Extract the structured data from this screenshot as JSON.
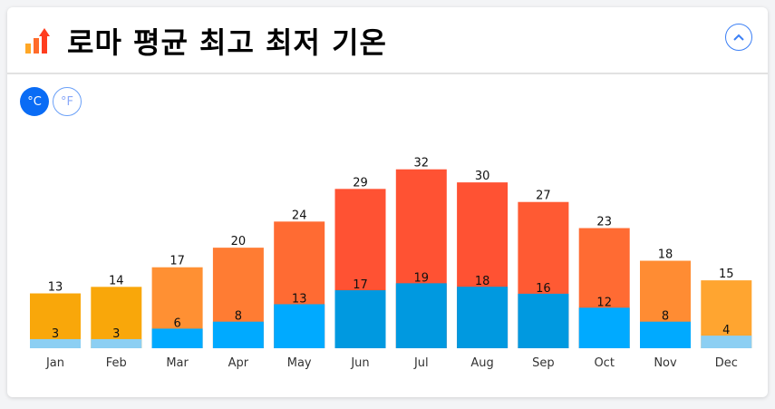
{
  "header": {
    "title": "로마 평균 최고 최저 기온",
    "icon": "bar-chart-up-icon",
    "collapse_icon": "chevron-up-icon"
  },
  "units": {
    "celsius": "°C",
    "fahrenheit": "°F",
    "selected": "celsius"
  },
  "chart_data": {
    "type": "bar",
    "categories": [
      "Jan",
      "Feb",
      "Mar",
      "Apr",
      "May",
      "Jun",
      "Jul",
      "Aug",
      "Sep",
      "Oct",
      "Nov",
      "Dec"
    ],
    "series": [
      {
        "key": "high",
        "values": [
          13,
          14,
          17,
          20,
          24,
          29,
          32,
          30,
          27,
          23,
          18,
          15
        ],
        "colors": [
          "#f9a70a",
          "#f9a70a",
          "#ff9033",
          "#ff7c33",
          "#ff6b33",
          "#ff5233",
          "#ff5233",
          "#ff5233",
          "#ff5a33",
          "#ff6b33",
          "#ff8c33",
          "#ffa530"
        ]
      },
      {
        "key": "low",
        "values": [
          3,
          3,
          6,
          8,
          13,
          17,
          19,
          18,
          16,
          12,
          8,
          4
        ],
        "colors": [
          "#8ccff3",
          "#8ccff3",
          "#00aaff",
          "#00aaff",
          "#00aaff",
          "#0099e0",
          "#0099e0",
          "#0099e0",
          "#0099e0",
          "#00aaff",
          "#00aaff",
          "#8ccff3"
        ]
      }
    ],
    "data_labels": true,
    "grid": false,
    "legend": "none"
  }
}
